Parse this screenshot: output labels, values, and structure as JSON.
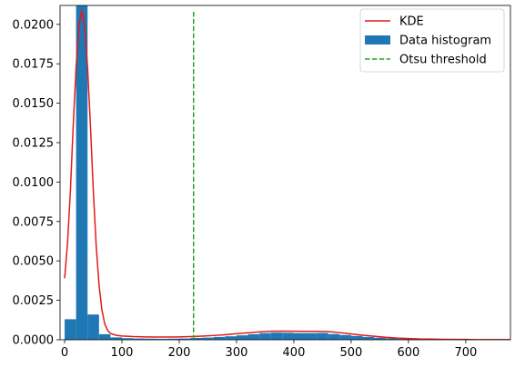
{
  "chart_data": {
    "type": "bar",
    "title": "",
    "xlabel": "",
    "ylabel": "",
    "xlim": [
      -8,
      778
    ],
    "ylim": [
      0,
      0.0212
    ],
    "x_ticks": [
      0,
      100,
      200,
      300,
      400,
      500,
      600,
      700
    ],
    "y_ticks": [
      0.0,
      0.0025,
      0.005,
      0.0075,
      0.01,
      0.0125,
      0.015,
      0.0175,
      0.02
    ],
    "x_tick_labels": [
      "0",
      "100",
      "200",
      "300",
      "400",
      "500",
      "600",
      "700"
    ],
    "y_tick_labels": [
      "0.0000",
      "0.0025",
      "0.0050",
      "0.0075",
      "0.0100",
      "0.0125",
      "0.0150",
      "0.0175",
      "0.0200"
    ],
    "grid": false,
    "legend_position": "top-right",
    "legend": [
      "KDE",
      "Data histogram",
      "Otsu threshold"
    ],
    "histogram": {
      "name": "Data histogram",
      "color": "#1f77b4",
      "bins": [
        {
          "x0": 0,
          "x1": 20,
          "density": 0.0013
        },
        {
          "x0": 20,
          "x1": 40,
          "density": 0.0215
        },
        {
          "x0": 40,
          "x1": 60,
          "density": 0.0016
        },
        {
          "x0": 60,
          "x1": 80,
          "density": 0.00035
        },
        {
          "x0": 80,
          "x1": 100,
          "density": 0.00015
        },
        {
          "x0": 100,
          "x1": 120,
          "density": 0.0001
        },
        {
          "x0": 120,
          "x1": 140,
          "density": 8e-05
        },
        {
          "x0": 140,
          "x1": 160,
          "density": 7e-05
        },
        {
          "x0": 160,
          "x1": 180,
          "density": 6e-05
        },
        {
          "x0": 180,
          "x1": 200,
          "density": 7e-05
        },
        {
          "x0": 200,
          "x1": 220,
          "density": 8e-05
        },
        {
          "x0": 220,
          "x1": 240,
          "density": 0.00012
        },
        {
          "x0": 240,
          "x1": 260,
          "density": 0.00014
        },
        {
          "x0": 260,
          "x1": 280,
          "density": 0.00018
        },
        {
          "x0": 280,
          "x1": 300,
          "density": 0.00022
        },
        {
          "x0": 300,
          "x1": 320,
          "density": 0.00028
        },
        {
          "x0": 320,
          "x1": 340,
          "density": 0.00035
        },
        {
          "x0": 340,
          "x1": 360,
          "density": 0.00042
        },
        {
          "x0": 360,
          "x1": 380,
          "density": 0.00045
        },
        {
          "x0": 380,
          "x1": 400,
          "density": 0.00044
        },
        {
          "x0": 400,
          "x1": 420,
          "density": 0.00042
        },
        {
          "x0": 420,
          "x1": 440,
          "density": 0.00042
        },
        {
          "x0": 440,
          "x1": 460,
          "density": 0.00043
        },
        {
          "x0": 460,
          "x1": 480,
          "density": 0.00036
        },
        {
          "x0": 480,
          "x1": 500,
          "density": 0.0003
        },
        {
          "x0": 500,
          "x1": 520,
          "density": 0.00024
        },
        {
          "x0": 520,
          "x1": 540,
          "density": 0.00018
        },
        {
          "x0": 540,
          "x1": 560,
          "density": 0.00013
        },
        {
          "x0": 560,
          "x1": 580,
          "density": 9e-05
        },
        {
          "x0": 580,
          "x1": 600,
          "density": 6e-05
        },
        {
          "x0": 600,
          "x1": 620,
          "density": 4e-05
        },
        {
          "x0": 620,
          "x1": 640,
          "density": 3e-05
        },
        {
          "x0": 640,
          "x1": 660,
          "density": 2e-05
        },
        {
          "x0": 660,
          "x1": 680,
          "density": 2e-05
        },
        {
          "x0": 680,
          "x1": 700,
          "density": 1e-05
        },
        {
          "x0": 700,
          "x1": 720,
          "density": 1e-05
        }
      ]
    },
    "kde": {
      "name": "KDE",
      "color": "#e31a1c",
      "x": [
        0,
        5,
        10,
        15,
        20,
        25,
        30,
        35,
        40,
        45,
        50,
        55,
        60,
        65,
        70,
        75,
        80,
        90,
        100,
        120,
        140,
        160,
        180,
        200,
        220,
        240,
        260,
        280,
        300,
        320,
        340,
        360,
        380,
        400,
        420,
        440,
        460,
        480,
        500,
        520,
        540,
        560,
        580,
        600,
        620,
        640,
        660,
        680,
        700,
        720,
        740,
        760,
        778
      ],
      "y": [
        0.0039,
        0.0061,
        0.0094,
        0.0136,
        0.0173,
        0.0199,
        0.0209,
        0.0199,
        0.0173,
        0.0136,
        0.0095,
        0.006,
        0.0035,
        0.0019,
        0.001,
        0.0006,
        0.0004,
        0.00028,
        0.00024,
        0.0002,
        0.00018,
        0.00017,
        0.00017,
        0.00018,
        0.0002,
        0.00023,
        0.00027,
        0.00032,
        0.00038,
        0.00044,
        0.0005,
        0.00054,
        0.00055,
        0.00054,
        0.00053,
        0.00053,
        0.00052,
        0.00045,
        0.00037,
        0.00029,
        0.00022,
        0.00016,
        0.00011,
        8e-05,
        5e-05,
        4e-05,
        3e-05,
        2e-05,
        2e-05,
        1e-05,
        1e-05,
        1e-05,
        1e-05
      ]
    },
    "threshold": {
      "name": "Otsu threshold",
      "x": 225,
      "color": "#2ca02c"
    }
  }
}
